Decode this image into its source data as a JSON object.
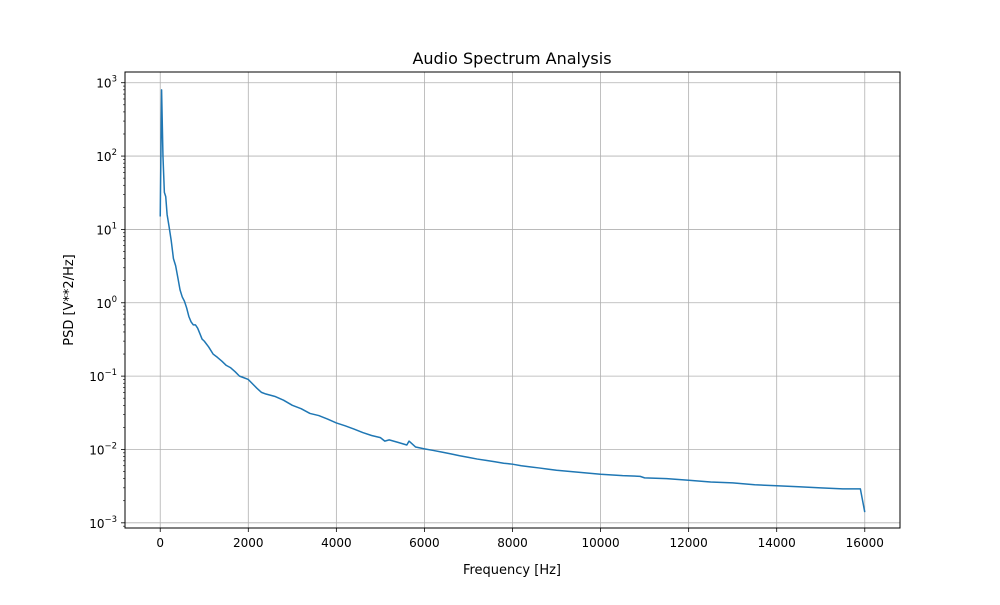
{
  "chart_data": {
    "type": "line",
    "title": "Audio Spectrum Analysis",
    "xlabel": "Frequency [Hz]",
    "ylabel": "PSD [V**2/Hz]",
    "x_scale": "linear",
    "y_scale": "log",
    "xlim": [
      -800,
      16800
    ],
    "ylim": [
      0.00085,
      1400
    ],
    "grid": true,
    "x_ticks": [
      {
        "value": 0,
        "label": "0"
      },
      {
        "value": 2000,
        "label": "2000"
      },
      {
        "value": 4000,
        "label": "4000"
      },
      {
        "value": 6000,
        "label": "6000"
      },
      {
        "value": 8000,
        "label": "8000"
      },
      {
        "value": 10000,
        "label": "10000"
      },
      {
        "value": 12000,
        "label": "12000"
      },
      {
        "value": 14000,
        "label": "14000"
      },
      {
        "value": 16000,
        "label": "16000"
      }
    ],
    "y_ticks": [
      {
        "value": 0.001,
        "base": "10",
        "exp": "−3"
      },
      {
        "value": 0.01,
        "base": "10",
        "exp": "−2"
      },
      {
        "value": 0.1,
        "base": "10",
        "exp": "−1"
      },
      {
        "value": 1,
        "base": "10",
        "exp": "0"
      },
      {
        "value": 10,
        "base": "10",
        "exp": "1"
      },
      {
        "value": 100,
        "base": "10",
        "exp": "2"
      },
      {
        "value": 1000,
        "base": "10",
        "exp": "3"
      }
    ],
    "series": [
      {
        "color": "#1f77b4",
        "points": [
          [
            0,
            15
          ],
          [
            31,
            800
          ],
          [
            62,
            100
          ],
          [
            94,
            32
          ],
          [
            125,
            28
          ],
          [
            156,
            16
          ],
          [
            200,
            11
          ],
          [
            250,
            7
          ],
          [
            300,
            4
          ],
          [
            350,
            3.2
          ],
          [
            400,
            2.2
          ],
          [
            450,
            1.5
          ],
          [
            500,
            1.2
          ],
          [
            550,
            1.05
          ],
          [
            600,
            0.85
          ],
          [
            650,
            0.65
          ],
          [
            700,
            0.55
          ],
          [
            750,
            0.5
          ],
          [
            800,
            0.5
          ],
          [
            850,
            0.45
          ],
          [
            900,
            0.38
          ],
          [
            950,
            0.32
          ],
          [
            1000,
            0.3
          ],
          [
            1100,
            0.25
          ],
          [
            1200,
            0.2
          ],
          [
            1300,
            0.18
          ],
          [
            1400,
            0.16
          ],
          [
            1500,
            0.14
          ],
          [
            1600,
            0.13
          ],
          [
            1700,
            0.115
          ],
          [
            1800,
            0.1
          ],
          [
            1900,
            0.095
          ],
          [
            2000,
            0.09
          ],
          [
            2100,
            0.078
          ],
          [
            2200,
            0.068
          ],
          [
            2300,
            0.06
          ],
          [
            2400,
            0.057
          ],
          [
            2600,
            0.053
          ],
          [
            2800,
            0.047
          ],
          [
            3000,
            0.04
          ],
          [
            3200,
            0.036
          ],
          [
            3400,
            0.031
          ],
          [
            3600,
            0.029
          ],
          [
            3800,
            0.026
          ],
          [
            4000,
            0.023
          ],
          [
            4200,
            0.021
          ],
          [
            4400,
            0.019
          ],
          [
            4600,
            0.017
          ],
          [
            4800,
            0.0155
          ],
          [
            5000,
            0.0145
          ],
          [
            5100,
            0.013
          ],
          [
            5200,
            0.0135
          ],
          [
            5400,
            0.0125
          ],
          [
            5600,
            0.0115
          ],
          [
            5650,
            0.013
          ],
          [
            5800,
            0.0108
          ],
          [
            6000,
            0.0102
          ],
          [
            6200,
            0.0097
          ],
          [
            6400,
            0.0092
          ],
          [
            6600,
            0.0087
          ],
          [
            6800,
            0.0082
          ],
          [
            7000,
            0.0078
          ],
          [
            7200,
            0.0074
          ],
          [
            7400,
            0.0071
          ],
          [
            7600,
            0.0068
          ],
          [
            7800,
            0.0065
          ],
          [
            8000,
            0.0063
          ],
          [
            8200,
            0.006
          ],
          [
            8400,
            0.0058
          ],
          [
            8600,
            0.0056
          ],
          [
            8800,
            0.0054
          ],
          [
            9000,
            0.0052
          ],
          [
            9500,
            0.0049
          ],
          [
            10000,
            0.0046
          ],
          [
            10500,
            0.0044
          ],
          [
            10900,
            0.0043
          ],
          [
            11000,
            0.0041
          ],
          [
            11500,
            0.004
          ],
          [
            12000,
            0.0038
          ],
          [
            12500,
            0.0036
          ],
          [
            13000,
            0.0035
          ],
          [
            13500,
            0.0033
          ],
          [
            14000,
            0.0032
          ],
          [
            14500,
            0.0031
          ],
          [
            15000,
            0.003
          ],
          [
            15500,
            0.0029
          ],
          [
            15900,
            0.0029
          ],
          [
            16000,
            0.0014
          ]
        ]
      }
    ]
  }
}
